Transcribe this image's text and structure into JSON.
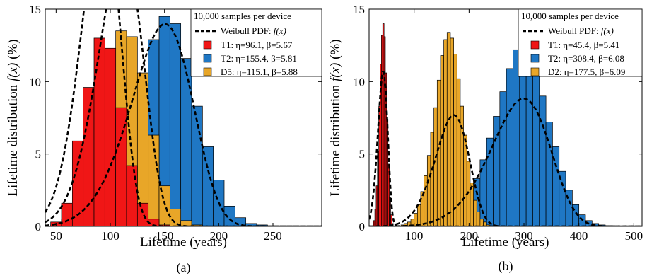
{
  "chart_data": [
    {
      "type": "bar",
      "panel_label": "(a)",
      "xlabel": "Lifetime (years)",
      "ylabel": "Lifetime distribution f(x) (%)",
      "ylabel_parts": {
        "prefix": "Lifetime distribution ",
        "fx": "f(x)",
        "suffix": " (%)"
      },
      "xlim": [
        40,
        295
      ],
      "ylim": [
        0,
        15
      ],
      "xticks": [
        50,
        100,
        150,
        200,
        250
      ],
      "yticks": [
        0,
        5,
        10,
        15
      ],
      "grid": false,
      "legend": {
        "title": "10,000 samples per device",
        "placement": "top-right",
        "pdf_label": "Weibull PDF: ",
        "pdf_fx": "f(x)",
        "entries": [
          "T1: η=96.1, β=5.67",
          "T2: η=155.4, β=5.81",
          "D5: η=115.1, β=5.88"
        ]
      },
      "bin_width": 10,
      "series": [
        {
          "name": "T2: η=155.4, β=5.81",
          "color": "#1f77c4",
          "eta": 155.4,
          "beta": 5.81,
          "bin_starts": [
            55,
            65,
            75,
            85,
            95,
            105,
            115,
            125,
            135,
            145,
            155,
            165,
            175,
            185,
            195,
            205,
            215,
            225,
            235
          ],
          "values": [
            0.05,
            0.1,
            0.3,
            0.7,
            1.6,
            3.3,
            5.7,
            9.0,
            12.9,
            14.5,
            14.0,
            11.6,
            8.3,
            5.5,
            3.2,
            1.4,
            0.6,
            0.2,
            0.1
          ]
        },
        {
          "name": "D5: η=115.1, β=5.88",
          "color": "#e8a628",
          "eta": 115.1,
          "beta": 5.88,
          "bin_starts": [
            45,
            55,
            65,
            75,
            85,
            95,
            105,
            115,
            125,
            135,
            145,
            155,
            165,
            175
          ],
          "values": [
            0.1,
            0.5,
            1.4,
            3.4,
            7.6,
            12.0,
            13.5,
            13.1,
            10.6,
            6.3,
            2.8,
            1.2,
            0.4,
            0.1
          ]
        },
        {
          "name": "T1: η=96.1, β=5.67",
          "color": "#f01616",
          "eta": 96.1,
          "beta": 5.67,
          "bin_starts": [
            45,
            55,
            65,
            75,
            85,
            95,
            105,
            115,
            125,
            135,
            145
          ],
          "values": [
            0.3,
            1.6,
            5.9,
            9.6,
            13.0,
            12.3,
            8.2,
            4.2,
            1.6,
            0.5,
            0.1
          ]
        }
      ]
    },
    {
      "type": "bar",
      "panel_label": "(b)",
      "xlabel": "Lifetime (years)",
      "ylabel": "Lifetime distribution f(x) (%)",
      "ylabel_parts": {
        "prefix": "Lifetime distribution ",
        "fx": "f(x)",
        "suffix": " (%)"
      },
      "xlim": [
        18,
        515
      ],
      "ylim": [
        0,
        15
      ],
      "xticks": [
        100,
        200,
        300,
        400,
        500
      ],
      "yticks": [
        0,
        5,
        10,
        15
      ],
      "grid": false,
      "legend": {
        "title": "10,000 samples per device",
        "placement": "top-right",
        "pdf_label": "Weibull PDF: ",
        "pdf_fx": "f(x)",
        "entries": [
          "T1: η=45.4, β=5.41",
          "T2: η=308.4, β=6.08",
          "D2: η=177.5, β=6.09"
        ]
      },
      "bin_width_t1": 2.4,
      "bin_width": 12,
      "series": [
        {
          "name": "T2: η=308.4, β=6.08",
          "color": "#1f77c4",
          "eta": 308.4,
          "beta": 6.08,
          "bin_starts": [
            124,
            136,
            148,
            160,
            172,
            184,
            196,
            208,
            220,
            232,
            244,
            256,
            268,
            280,
            292,
            304,
            316,
            328,
            340,
            352,
            364,
            376,
            388,
            400,
            412,
            424,
            436,
            448
          ],
          "values": [
            0.1,
            0.2,
            0.3,
            0.6,
            1.0,
            1.6,
            2.4,
            3.3,
            4.6,
            6.1,
            7.6,
            9.3,
            10.9,
            12.2,
            12.4,
            11.8,
            10.6,
            9.0,
            7.2,
            5.5,
            3.8,
            2.5,
            1.5,
            0.8,
            0.4,
            0.2,
            0.1,
            0.05
          ]
        },
        {
          "name": "D2: η=177.5, β=6.09",
          "color": "#e8a628",
          "eta": 177.5,
          "beta": 6.09,
          "bin_starts": [
            76,
            82,
            88,
            94,
            100,
            106,
            112,
            118,
            124,
            130,
            136,
            142,
            148,
            154,
            160,
            166,
            172,
            178,
            184,
            190,
            196,
            202,
            208,
            214,
            220,
            226,
            232,
            238
          ],
          "values": [
            0.1,
            0.2,
            0.3,
            0.5,
            0.9,
            1.5,
            2.4,
            3.5,
            4.9,
            6.5,
            8.2,
            10.1,
            11.8,
            12.9,
            13.4,
            13.0,
            11.9,
            10.2,
            8.3,
            6.3,
            4.5,
            3.0,
            1.8,
            1.0,
            0.5,
            0.3,
            0.1,
            0.05
          ]
        },
        {
          "name": "T1: η=45.4, β=5.41",
          "color": "#f01616",
          "eta": 45.4,
          "beta": 5.41,
          "bin_starts": [
            26,
            28.4,
            30.8,
            33.2,
            35.6,
            38,
            40.4,
            42.8,
            45.2,
            47.6,
            50,
            52.4,
            54.8,
            57.2,
            59.6
          ],
          "values": [
            0.4,
            1.2,
            2.8,
            5.2,
            8.3,
            11.2,
            13.2,
            14.0,
            13.1,
            10.6,
            7.4,
            4.3,
            2.0,
            0.8,
            0.2
          ]
        }
      ]
    }
  ]
}
